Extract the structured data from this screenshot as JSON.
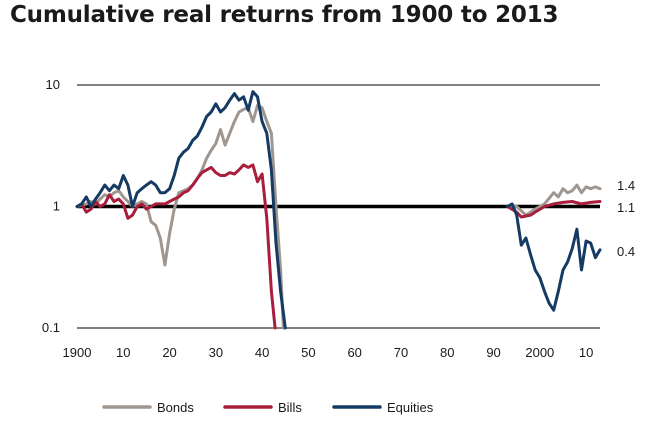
{
  "chart_data": {
    "type": "line",
    "title": "Cumulative real returns from 1900 to 2013",
    "xlabel": "",
    "ylabel": "",
    "y_scale": "log",
    "ylim": [
      0.1,
      10
    ],
    "xlim": [
      1900,
      2013
    ],
    "y_ticks": [
      {
        "value": 10,
        "label": "10"
      },
      {
        "value": 1,
        "label": "1"
      },
      {
        "value": 0.1,
        "label": "0.1"
      }
    ],
    "x_ticks": [
      {
        "value": 1900,
        "label": "1900"
      },
      {
        "value": 1910,
        "label": "10"
      },
      {
        "value": 1920,
        "label": "20"
      },
      {
        "value": 1930,
        "label": "30"
      },
      {
        "value": 1940,
        "label": "40"
      },
      {
        "value": 1950,
        "label": "50"
      },
      {
        "value": 1960,
        "label": "60"
      },
      {
        "value": 1970,
        "label": "70"
      },
      {
        "value": 1980,
        "label": "80"
      },
      {
        "value": 1990,
        "label": "90"
      },
      {
        "value": 2000,
        "label": "2000"
      },
      {
        "value": 2010,
        "label": "10"
      }
    ],
    "grid": "horizontal at tick values",
    "legend_position": "bottom",
    "series": [
      {
        "name": "Bonds",
        "color": "#a09690",
        "segments": [
          [
            [
              1900,
              1.0
            ],
            [
              1902,
              1.05
            ],
            [
              1903,
              1.1
            ],
            [
              1904,
              1.05
            ],
            [
              1905,
              1.15
            ],
            [
              1906,
              1.25
            ],
            [
              1907,
              1.2
            ],
            [
              1908,
              1.3
            ],
            [
              1909,
              1.35
            ],
            [
              1910,
              1.2
            ],
            [
              1911,
              1.1
            ],
            [
              1912,
              1.0
            ],
            [
              1913,
              1.05
            ],
            [
              1914,
              1.1
            ],
            [
              1915,
              1.05
            ],
            [
              1916,
              0.75
            ],
            [
              1917,
              0.7
            ],
            [
              1918,
              0.55
            ],
            [
              1919,
              0.33
            ],
            [
              1920,
              0.6
            ],
            [
              1921,
              0.95
            ],
            [
              1922,
              1.3
            ],
            [
              1923,
              1.35
            ],
            [
              1924,
              1.4
            ],
            [
              1925,
              1.5
            ],
            [
              1926,
              1.7
            ],
            [
              1927,
              2.0
            ],
            [
              1928,
              2.5
            ],
            [
              1929,
              2.9
            ],
            [
              1930,
              3.3
            ],
            [
              1931,
              4.3
            ],
            [
              1932,
              3.2
            ],
            [
              1933,
              4.0
            ],
            [
              1934,
              5.0
            ],
            [
              1935,
              6.0
            ],
            [
              1936,
              6.3
            ],
            [
              1937,
              6.5
            ],
            [
              1938,
              5.0
            ],
            [
              1939,
              6.8
            ],
            [
              1940,
              6.5
            ],
            [
              1941,
              5.0
            ],
            [
              1942,
              4.0
            ],
            [
              1943,
              1.0
            ],
            [
              1944,
              0.3
            ],
            [
              1944.6,
              0.1
            ]
          ],
          [
            [
              1993,
              1.0
            ],
            [
              1995,
              1.0
            ],
            [
              1997,
              0.85
            ],
            [
              1999,
              0.95
            ],
            [
              2001,
              1.05
            ],
            [
              2003,
              1.3
            ],
            [
              2004,
              1.2
            ],
            [
              2005,
              1.4
            ],
            [
              2006,
              1.3
            ],
            [
              2007,
              1.35
            ],
            [
              2008,
              1.5
            ],
            [
              2009,
              1.3
            ],
            [
              2010,
              1.45
            ],
            [
              2011,
              1.4
            ],
            [
              2012,
              1.45
            ],
            [
              2013,
              1.4
            ]
          ]
        ]
      },
      {
        "name": "Bills",
        "color": "#a81e3c",
        "segments": [
          [
            [
              1900,
              1.0
            ],
            [
              1901,
              1.05
            ],
            [
              1902,
              0.9
            ],
            [
              1903,
              0.95
            ],
            [
              1904,
              1.1
            ],
            [
              1905,
              1.0
            ],
            [
              1906,
              1.05
            ],
            [
              1907,
              1.25
            ],
            [
              1908,
              1.1
            ],
            [
              1909,
              1.15
            ],
            [
              1910,
              1.05
            ],
            [
              1911,
              0.8
            ],
            [
              1912,
              0.85
            ],
            [
              1913,
              1.0
            ],
            [
              1914,
              1.05
            ],
            [
              1915,
              0.95
            ],
            [
              1916,
              1.0
            ],
            [
              1917,
              1.05
            ],
            [
              1918,
              1.05
            ],
            [
              1919,
              1.05
            ],
            [
              1920,
              1.1
            ],
            [
              1921,
              1.15
            ],
            [
              1922,
              1.2
            ],
            [
              1923,
              1.3
            ],
            [
              1924,
              1.35
            ],
            [
              1925,
              1.5
            ],
            [
              1926,
              1.7
            ],
            [
              1927,
              1.9
            ],
            [
              1928,
              2.0
            ],
            [
              1929,
              2.1
            ],
            [
              1930,
              1.9
            ],
            [
              1931,
              1.8
            ],
            [
              1932,
              1.8
            ],
            [
              1933,
              1.9
            ],
            [
              1934,
              1.85
            ],
            [
              1935,
              2.0
            ],
            [
              1936,
              2.2
            ],
            [
              1937,
              2.1
            ],
            [
              1938,
              2.2
            ],
            [
              1939,
              1.6
            ],
            [
              1940,
              1.85
            ],
            [
              1941,
              0.8
            ],
            [
              1942,
              0.2
            ],
            [
              1942.8,
              0.1
            ]
          ],
          [
            [
              1993,
              1.0
            ],
            [
              1995,
              0.9
            ],
            [
              1996,
              0.82
            ],
            [
              1998,
              0.85
            ],
            [
              1999,
              0.9
            ],
            [
              2001,
              1.0
            ],
            [
              2003,
              1.05
            ],
            [
              2005,
              1.08
            ],
            [
              2007,
              1.1
            ],
            [
              2009,
              1.05
            ],
            [
              2011,
              1.08
            ],
            [
              2013,
              1.1
            ]
          ]
        ]
      },
      {
        "name": "Equities",
        "color": "#153a63",
        "segments": [
          [
            [
              1900,
              1.0
            ],
            [
              1901,
              1.05
            ],
            [
              1902,
              1.2
            ],
            [
              1903,
              1.0
            ],
            [
              1904,
              1.15
            ],
            [
              1905,
              1.3
            ],
            [
              1906,
              1.5
            ],
            [
              1907,
              1.35
            ],
            [
              1908,
              1.5
            ],
            [
              1909,
              1.4
            ],
            [
              1910,
              1.8
            ],
            [
              1911,
              1.5
            ],
            [
              1912,
              1.0
            ],
            [
              1913,
              1.3
            ],
            [
              1914,
              1.4
            ],
            [
              1915,
              1.5
            ],
            [
              1916,
              1.6
            ],
            [
              1917,
              1.5
            ],
            [
              1918,
              1.3
            ],
            [
              1919,
              1.3
            ],
            [
              1920,
              1.4
            ],
            [
              1921,
              1.8
            ],
            [
              1922,
              2.5
            ],
            [
              1923,
              2.8
            ],
            [
              1924,
              3.0
            ],
            [
              1925,
              3.5
            ],
            [
              1926,
              3.8
            ],
            [
              1927,
              4.5
            ],
            [
              1928,
              5.5
            ],
            [
              1929,
              6.0
            ],
            [
              1930,
              7.0
            ],
            [
              1931,
              6.0
            ],
            [
              1932,
              6.5
            ],
            [
              1933,
              7.5
            ],
            [
              1934,
              8.5
            ],
            [
              1935,
              7.5
            ],
            [
              1936,
              8.0
            ],
            [
              1937,
              6.2
            ],
            [
              1938,
              8.8
            ],
            [
              1939,
              8.0
            ],
            [
              1940,
              5.0
            ],
            [
              1941,
              4.0
            ],
            [
              1942,
              2.0
            ],
            [
              1943,
              0.5
            ],
            [
              1944,
              0.2
            ],
            [
              1945,
              0.1
            ]
          ],
          [
            [
              1993,
              1.0
            ],
            [
              1994,
              1.05
            ],
            [
              1995,
              0.85
            ],
            [
              1996,
              0.48
            ],
            [
              1997,
              0.55
            ],
            [
              1998,
              0.4
            ],
            [
              1999,
              0.3
            ],
            [
              2000,
              0.26
            ],
            [
              2001,
              0.2
            ],
            [
              2002,
              0.16
            ],
            [
              2003,
              0.14
            ],
            [
              2004,
              0.2
            ],
            [
              2005,
              0.3
            ],
            [
              2006,
              0.35
            ],
            [
              2007,
              0.45
            ],
            [
              2008,
              0.65
            ],
            [
              2009,
              0.3
            ],
            [
              2010,
              0.52
            ],
            [
              2011,
              0.5
            ],
            [
              2012,
              0.38
            ],
            [
              2013,
              0.44
            ]
          ]
        ]
      }
    ],
    "end_labels": [
      {
        "value": 1.4,
        "text": "1.4"
      },
      {
        "value": 1.1,
        "text": "1.1"
      },
      {
        "value": 0.4,
        "text": "0.4"
      }
    ]
  }
}
